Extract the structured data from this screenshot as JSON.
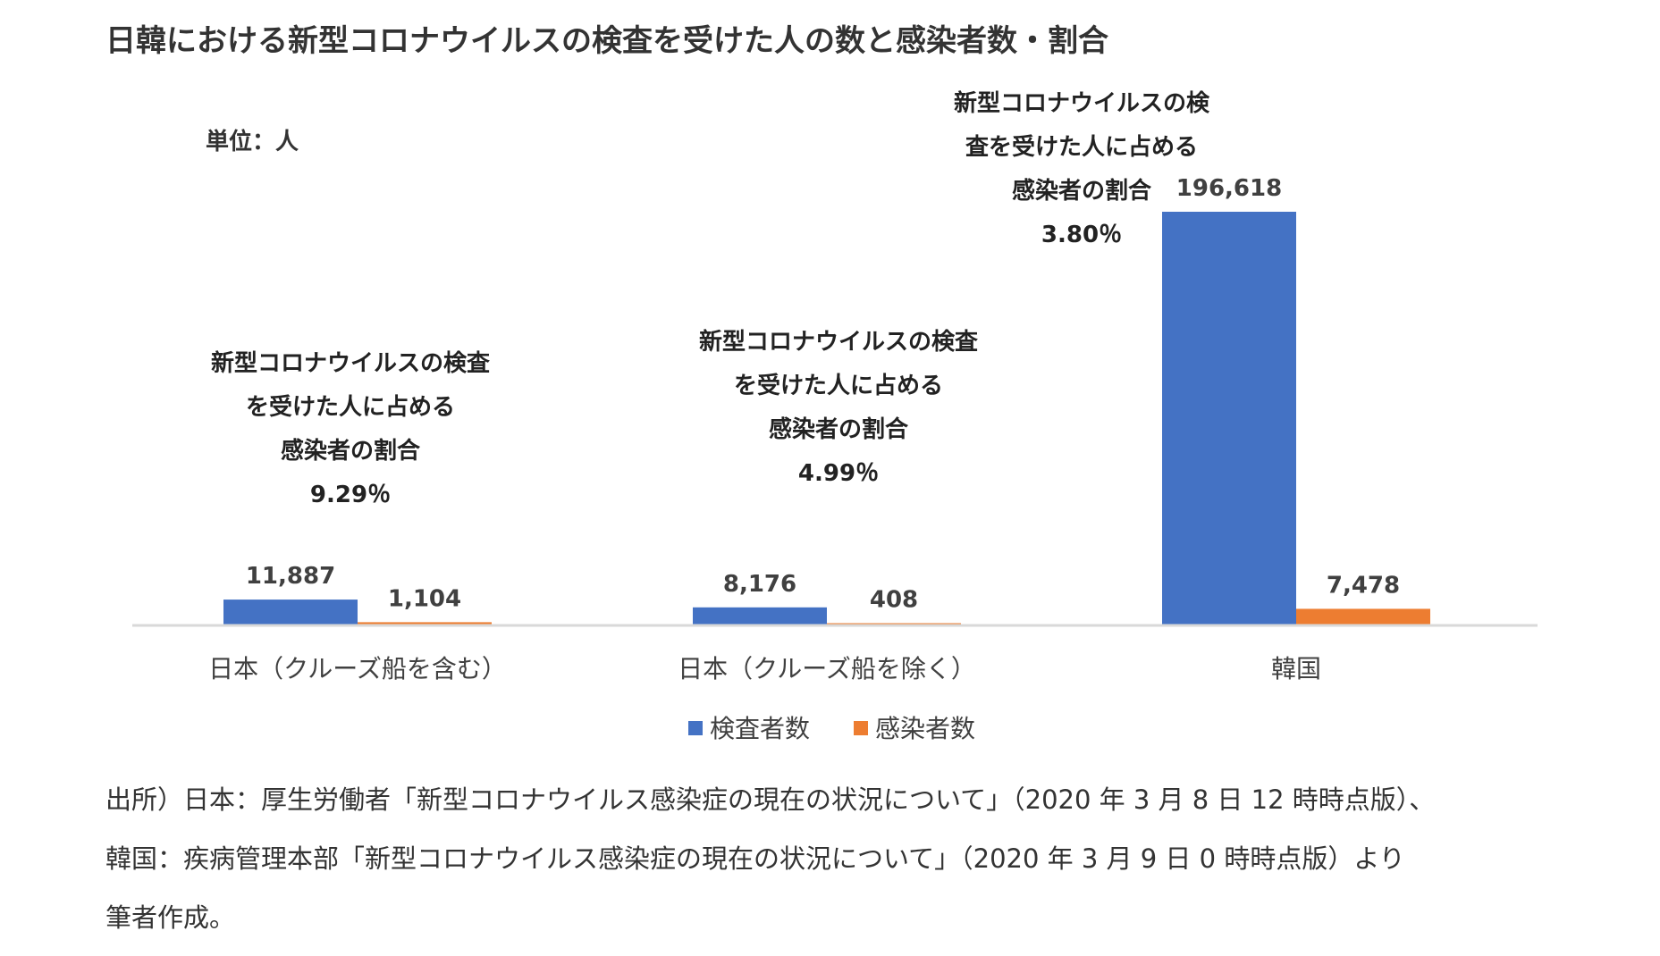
{
  "title": "日韓における新型コロナウイルスの検査を受けた人の数と感染者数・割合",
  "unit_label": "単位：人",
  "chart_data": {
    "type": "bar",
    "title": "日韓における新型コロナウイルスの検査を受けた人の数と感染者数・割合",
    "categories": [
      "日本（クルーズ船を含む）",
      "日本（クルーズ船を除く）",
      "韓国"
    ],
    "series": [
      {
        "name": "検査者数",
        "values": [
          11887,
          8176,
          196618
        ],
        "labels": [
          "11,887",
          "8,176",
          "196,618"
        ],
        "color": "#4472C4"
      },
      {
        "name": "感染者数",
        "values": [
          1104,
          408,
          7478
        ],
        "labels": [
          "1,104",
          "408",
          "7,478"
        ],
        "color": "#ED7D31"
      }
    ],
    "ylim": [
      0,
      196618
    ],
    "grid": false,
    "legend": "bottom",
    "annotations": [
      {
        "category": "日本（クルーズ船を含む）",
        "lines": [
          "新型コロナウイルスの検査",
          "を受けた人に占める",
          "感染者の割合"
        ],
        "value": "9.29％"
      },
      {
        "category": "日本（クルーズ船を除く）",
        "lines": [
          "新型コロナウイルスの検査",
          "を受けた人に占める",
          "感染者の割合"
        ],
        "value": "4.99％"
      },
      {
        "category": "韓国",
        "lines": [
          "新型コロナウイルスの検",
          "査を受けた人に占める",
          "感染者の割合"
        ],
        "value": "3.80％"
      }
    ]
  },
  "source_lines": [
    "出所）日本：厚生労働者「新型コロナウイルス感染症の現在の状況について」（2020 年 3 月 8 日 12 時時点版）、",
    "韓国：疾病管理本部「新型コロナウイルス感染症の現在の状況について」（2020 年 3 月 9 日 0 時時点版）より",
    "筆者作成。"
  ]
}
